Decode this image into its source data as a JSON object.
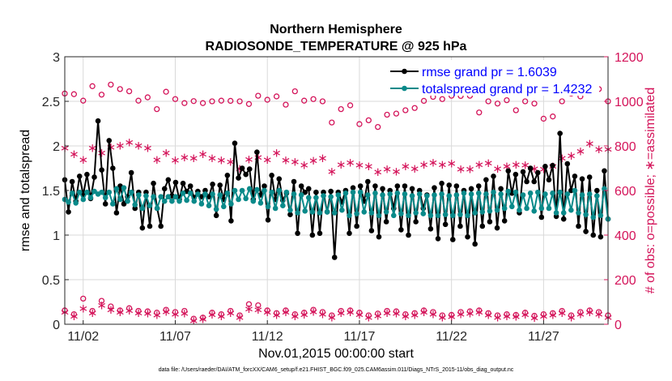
{
  "chart_data": {
    "type": "line",
    "title": "Northern Hemisphere",
    "subtitle": "RADIOSONDE_TEMPERATURE @ 925 hPa",
    "xlabel": "Nov.01,2015 00:00:00 start",
    "ylabel": "rmse and totalspread",
    "y2label": "# of obs: o=possible; ∗=assimilated",
    "footnote": "data file: /Users/raeder/DAI/ATM_forcXX/CAM6_setup/f.e21.FHIST_BGC.f09_025.CAM6assim.011/Diags_NTrS_2015-11/obs_diag_output.nc",
    "xlim": [
      0,
      29.5
    ],
    "ylim": [
      0,
      3
    ],
    "y2lim": [
      0,
      1200
    ],
    "xticks": [
      1,
      6,
      11,
      16,
      21,
      26
    ],
    "xtick_labels": [
      "11/02",
      "11/07",
      "11/12",
      "11/17",
      "11/22",
      "11/27"
    ],
    "yticks": [
      0,
      0.5,
      1,
      1.5,
      2,
      2.5,
      3
    ],
    "ytick_labels": [
      "0",
      "0.5",
      "1",
      "1.5",
      "2",
      "2.5",
      "3"
    ],
    "y2ticks": [
      0,
      200,
      400,
      600,
      800,
      1000,
      1200
    ],
    "y2tick_labels": [
      "0",
      "200",
      "400",
      "600",
      "800",
      "1000",
      "1200"
    ],
    "grid": true,
    "legend_position": "top-right",
    "colors": {
      "rmse": "#000000",
      "spread": "#0a8a8a",
      "obs": "#d4145a"
    },
    "series": [
      {
        "name": "rmse",
        "legend": "rmse grand pr = 1.6039",
        "axis": "left",
        "values": [
          1.62,
          1.26,
          1.6,
          1.38,
          1.66,
          1.45,
          1.68,
          1.41,
          1.65,
          2.28,
          1.73,
          1.35,
          2.06,
          1.75,
          1.25,
          1.55,
          1.35,
          1.43,
          1.7,
          1.3,
          1.48,
          1.08,
          1.48,
          1.1,
          1.58,
          1.3,
          1.1,
          1.52,
          1.62,
          1.44,
          1.59,
          1.4,
          1.58,
          1.49,
          1.55,
          1.42,
          1.49,
          1.43,
          1.5,
          1.43,
          1.57,
          1.22,
          1.56,
          1.4,
          1.67,
          1.16,
          2.03,
          1.64,
          1.75,
          1.68,
          1.74,
          1.4,
          1.93,
          1.45,
          1.55,
          1.17,
          1.67,
          1.4,
          1.63,
          1.39,
          1.47,
          1.23,
          1.6,
          1.02,
          1.55,
          1.48,
          1.52,
          1.0,
          1.48,
          1.02,
          1.48,
          1.26,
          1.49,
          0.75,
          1.48,
          1.37,
          1.5,
          1.02,
          1.53,
          1.1,
          1.55,
          1.38,
          1.6,
          1.05,
          1.55,
          0.98,
          1.52,
          1.15,
          1.5,
          1.3,
          1.55,
          1.06,
          1.55,
          1.0,
          1.52,
          1.15,
          1.5,
          1.3,
          1.45,
          1.07,
          1.53,
          0.96,
          1.58,
          1.12,
          1.56,
          0.95,
          1.55,
          1.1,
          1.5,
          0.98,
          1.52,
          0.9,
          1.55,
          1.1,
          1.62,
          1.15,
          1.66,
          1.08,
          1.52,
          1.16,
          1.72,
          1.47,
          1.68,
          1.25,
          1.71,
          1.6,
          1.75,
          1.6,
          1.7,
          1.2,
          1.77,
          1.62,
          1.78,
          1.21,
          2.14,
          1.18,
          1.8,
          1.5,
          1.66,
          1.1,
          1.63,
          1.04,
          1.65,
          1.0,
          1.5,
          0.98,
          1.72,
          1.18
        ],
        "marker": "dot"
      },
      {
        "name": "totalspread",
        "legend": "totalspread grand pr = 1.4232",
        "axis": "left",
        "values": [
          1.4,
          1.37,
          1.47,
          1.36,
          1.48,
          1.4,
          1.48,
          1.42,
          1.49,
          1.46,
          1.48,
          1.42,
          1.48,
          1.35,
          1.52,
          1.4,
          1.53,
          1.38,
          1.48,
          1.34,
          1.45,
          1.3,
          1.44,
          1.33,
          1.43,
          1.3,
          1.43,
          1.38,
          1.43,
          1.38,
          1.43,
          1.38,
          1.47,
          1.39,
          1.47,
          1.38,
          1.46,
          1.35,
          1.46,
          1.33,
          1.46,
          1.29,
          1.45,
          1.32,
          1.47,
          1.35,
          1.5,
          1.4,
          1.5,
          1.41,
          1.52,
          1.38,
          1.51,
          1.36,
          1.5,
          1.32,
          1.48,
          1.3,
          1.5,
          1.33,
          1.48,
          1.28,
          1.46,
          1.25,
          1.45,
          1.27,
          1.42,
          1.26,
          1.42,
          1.25,
          1.44,
          1.26,
          1.43,
          1.25,
          1.45,
          1.28,
          1.47,
          1.22,
          1.48,
          1.24,
          1.48,
          1.26,
          1.45,
          1.25,
          1.47,
          1.22,
          1.45,
          1.26,
          1.46,
          1.22,
          1.47,
          1.24,
          1.46,
          1.22,
          1.44,
          1.25,
          1.46,
          1.24,
          1.44,
          1.22,
          1.45,
          1.22,
          1.46,
          1.23,
          1.44,
          1.22,
          1.45,
          1.23,
          1.47,
          1.22,
          1.46,
          1.25,
          1.47,
          1.26,
          1.46,
          1.27,
          1.48,
          1.28,
          1.46,
          1.3,
          1.49,
          1.32,
          1.48,
          1.28,
          1.45,
          1.3,
          1.47,
          1.27,
          1.48,
          1.3,
          1.46,
          1.3,
          1.47,
          1.25,
          1.48,
          1.25,
          1.46,
          1.28,
          1.5,
          1.25,
          1.45,
          1.23,
          1.46,
          1.2,
          1.44,
          1.22,
          1.52,
          1.18
        ],
        "marker": "dot"
      },
      {
        "name": "obs_possible",
        "axis": "right",
        "marker": "circle",
        "x": [
          0.0,
          0.5,
          1.0,
          1.5,
          2.0,
          2.5,
          3.0,
          3.5,
          4.0,
          4.5,
          5.0,
          5.5,
          6.0,
          6.5,
          7.0,
          7.5,
          8.0,
          8.5,
          9.0,
          9.5,
          10.0,
          10.5,
          11.0,
          11.5,
          12.0,
          12.5,
          13.0,
          13.5,
          14.0,
          14.5,
          15.0,
          15.5,
          16.0,
          16.5,
          17.0,
          17.5,
          18.0,
          18.5,
          19.0,
          19.5,
          20.0,
          20.5,
          21.0,
          21.5,
          22.0,
          22.5,
          23.0,
          23.5,
          24.0,
          24.5,
          25.0,
          25.5,
          26.0,
          26.5,
          27.0,
          27.5,
          28.0,
          28.5,
          29.0,
          29.5
        ],
        "values": [
          1035,
          1032,
          1003,
          1068,
          1030,
          1075,
          1055,
          1045,
          1003,
          1018,
          965,
          1043,
          1010,
          992,
          1001,
          992,
          1000,
          1003,
          1002,
          1000,
          988,
          1025,
          1007,
          1022,
          985,
          1045,
          1003,
          1010,
          1000,
          905,
          965,
          982,
          898,
          915,
          885,
          940,
          945,
          960,
          970,
          1002,
          1020,
          1010,
          1025,
          1024,
          1025,
          950,
          1000,
          990,
          1005,
          960,
          1000,
          990,
          922,
          932,
          1000,
          1035,
          1022,
          1090,
          1055,
          1000
        ]
      },
      {
        "name": "obs_assimilated",
        "axis": "right",
        "marker": "asterisk",
        "x": [
          0.0,
          0.5,
          1.0,
          1.5,
          2.0,
          2.5,
          3.0,
          3.5,
          4.0,
          4.5,
          5.0,
          5.5,
          6.0,
          6.5,
          7.0,
          7.5,
          8.0,
          8.5,
          9.0,
          9.5,
          10.0,
          10.5,
          11.0,
          11.5,
          12.0,
          12.5,
          13.0,
          13.5,
          14.0,
          14.5,
          15.0,
          15.5,
          16.0,
          16.5,
          17.0,
          17.5,
          18.0,
          18.5,
          19.0,
          19.5,
          20.0,
          20.5,
          21.0,
          21.5,
          22.0,
          22.5,
          23.0,
          23.5,
          24.0,
          24.5,
          25.0,
          25.5,
          26.0,
          26.5,
          27.0,
          27.5,
          28.0,
          28.5,
          29.0,
          29.5
        ],
        "values": [
          795,
          768,
          742,
          795,
          772,
          798,
          805,
          820,
          805,
          795,
          742,
          772,
          740,
          752,
          750,
          768,
          750,
          740,
          732,
          702,
          743,
          752,
          742,
          772,
          740,
          732,
          718,
          738,
          750,
          690,
          720,
          730,
          718,
          713,
          688,
          700,
          690,
          712,
          702,
          720,
          730,
          720,
          725,
          700,
          700,
          720,
          728,
          702,
          712,
          720,
          718,
          702,
          700,
          712,
          750,
          760,
          780,
          815,
          790,
          790
        ]
      },
      {
        "name": "obs_possible_low",
        "axis": "right",
        "marker": "circle",
        "x": [
          0.0,
          0.5,
          1.0,
          1.5,
          2.0,
          2.5,
          3.0,
          3.5,
          4.0,
          4.5,
          5.0,
          5.5,
          6.0,
          6.5,
          7.0,
          7.5,
          8.0,
          8.5,
          9.0,
          9.5,
          10.0,
          10.5,
          11.0,
          11.5,
          12.0,
          12.5,
          13.0,
          13.5,
          14.0,
          14.5,
          15.0,
          15.5,
          16.0,
          16.5,
          17.0,
          17.5,
          18.0,
          18.5,
          19.0,
          19.5,
          20.0,
          20.5,
          21.0,
          21.5,
          22.0,
          22.5,
          23.0,
          23.5,
          24.0,
          24.5,
          25.0,
          25.5,
          26.0,
          26.5,
          27.0,
          27.5,
          28.0,
          28.5,
          29.0,
          29.5
        ],
        "values": [
          62,
          45,
          115,
          60,
          105,
          80,
          62,
          72,
          60,
          58,
          52,
          65,
          55,
          60,
          25,
          30,
          52,
          45,
          60,
          40,
          90,
          85,
          62,
          50,
          62,
          45,
          52,
          65,
          55,
          40,
          60,
          62,
          52,
          40,
          48,
          60,
          58,
          45,
          50,
          62,
          55,
          40,
          42,
          55,
          58,
          62,
          50,
          40,
          45,
          42,
          52,
          38,
          45,
          50,
          60,
          40,
          55,
          62,
          55,
          40
        ]
      },
      {
        "name": "obs_assimilated_low",
        "axis": "right",
        "marker": "asterisk",
        "x": [
          0.0,
          0.5,
          1.0,
          1.5,
          2.0,
          2.5,
          3.0,
          3.5,
          4.0,
          4.5,
          5.0,
          5.5,
          6.0,
          6.5,
          7.0,
          7.5,
          8.0,
          8.5,
          9.0,
          9.5,
          10.0,
          10.5,
          11.0,
          11.5,
          12.0,
          12.5,
          13.0,
          13.5,
          14.0,
          14.5,
          15.0,
          15.5,
          16.0,
          16.5,
          17.0,
          17.5,
          18.0,
          18.5,
          19.0,
          19.5,
          20.0,
          20.5,
          21.0,
          21.5,
          22.0,
          22.5,
          23.0,
          23.5,
          24.0,
          24.5,
          25.0,
          25.5,
          26.0,
          26.5,
          27.0,
          27.5,
          28.0,
          28.5,
          29.0,
          29.5
        ],
        "values": [
          58,
          40,
          75,
          55,
          90,
          70,
          58,
          65,
          55,
          52,
          45,
          60,
          50,
          52,
          20,
          28,
          48,
          40,
          55,
          35,
          72,
          70,
          58,
          45,
          58,
          40,
          48,
          60,
          50,
          35,
          55,
          58,
          48,
          35,
          42,
          55,
          52,
          40,
          45,
          58,
          50,
          35,
          38,
          50,
          52,
          58,
          45,
          35,
          40,
          38,
          48,
          32,
          40,
          45,
          55,
          35,
          50,
          58,
          50,
          35
        ]
      }
    ]
  }
}
